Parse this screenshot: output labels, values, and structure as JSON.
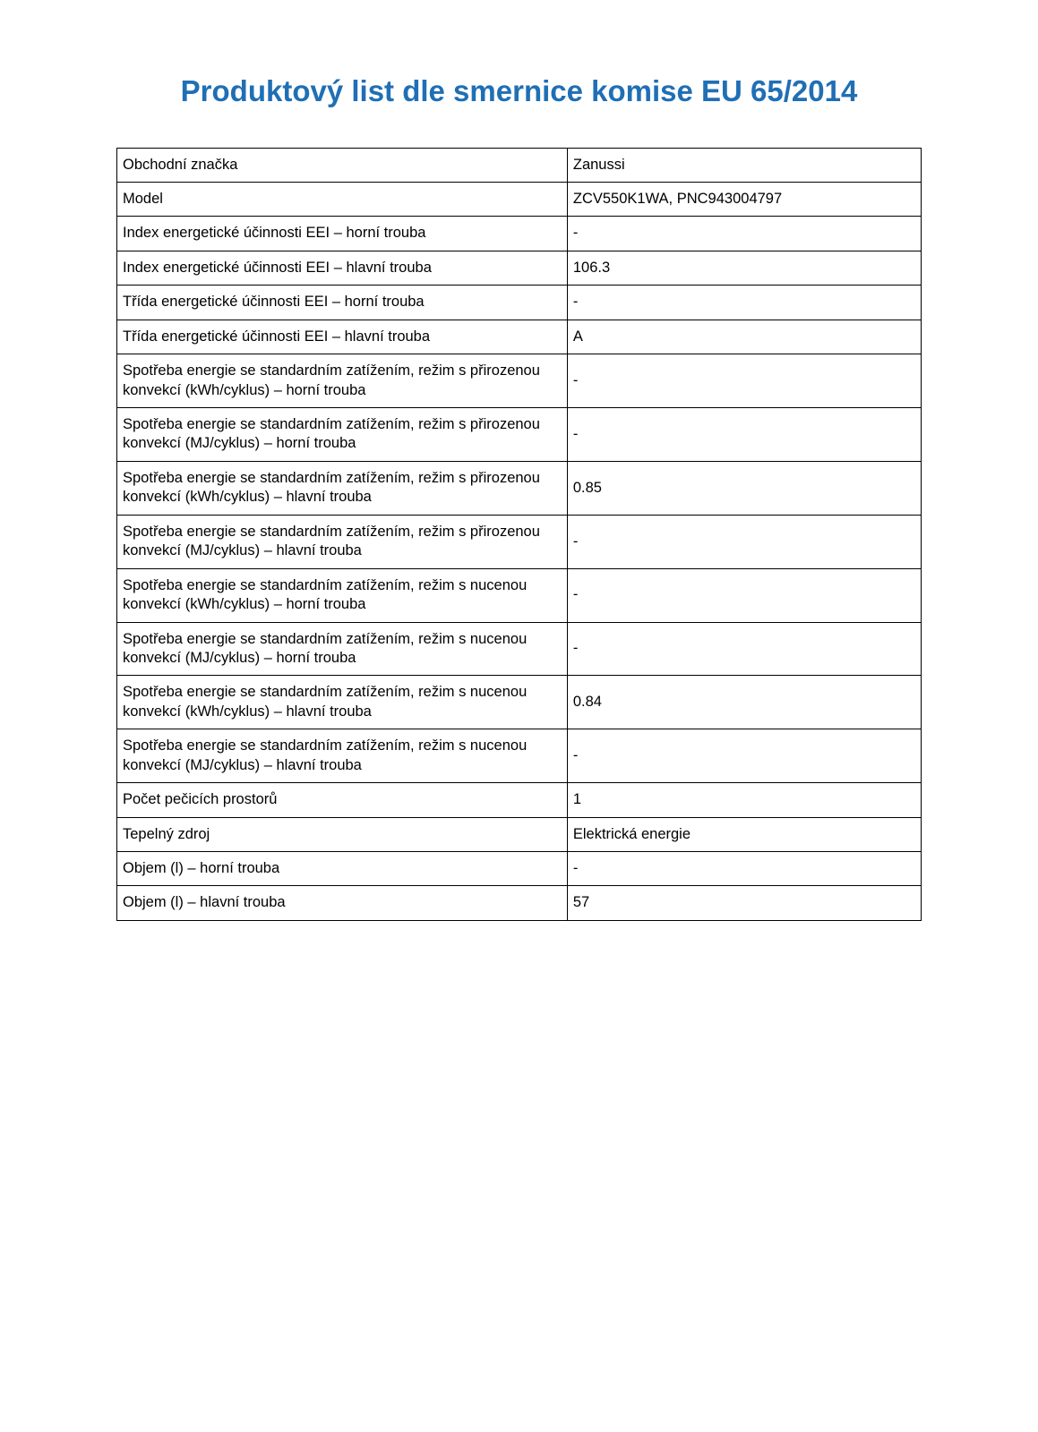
{
  "title": "Produktový list dle smernice komise EU 65/2014",
  "title_color": "#1f6fb5",
  "title_fontsize": 33,
  "body_fontsize": 16.5,
  "text_color": "#000000",
  "border_color": "#000000",
  "background_color": "#ffffff",
  "columns": [
    "label",
    "value"
  ],
  "column_widths": [
    "56%",
    "44%"
  ],
  "rows": [
    {
      "label": "Obchodní značka",
      "value": "Zanussi"
    },
    {
      "label": "Model",
      "value": "ZCV550K1WA, PNC943004797"
    },
    {
      "label": "Index energetické účinnosti EEI – horní trouba",
      "value": "-"
    },
    {
      "label": "Index energetické účinnosti EEI – hlavní trouba",
      "value": "106.3"
    },
    {
      "label": "Třída energetické účinnosti EEI – horní trouba",
      "value": "-"
    },
    {
      "label": "Třída energetické účinnosti EEI – hlavní trouba",
      "value": "A"
    },
    {
      "label": "Spotřeba energie se standardním zatížením, režim s přirozenou konvekcí (kWh/cyklus) – horní trouba",
      "value": "-"
    },
    {
      "label": "Spotřeba energie se standardním zatížením, režim s přirozenou konvekcí (MJ/cyklus) – horní trouba",
      "value": "-"
    },
    {
      "label": "Spotřeba energie se standardním zatížením, režim s přirozenou konvekcí (kWh/cyklus) – hlavní trouba",
      "value": "0.85"
    },
    {
      "label": "Spotřeba energie se standardním zatížením, režim s přirozenou konvekcí (MJ/cyklus) – hlavní trouba",
      "value": "-"
    },
    {
      "label": "Spotřeba energie se standardním zatížením, režim s nucenou konvekcí (kWh/cyklus) – horní trouba",
      "value": "-"
    },
    {
      "label": "Spotřeba energie se standardním zatížením, režim s nucenou konvekcí (MJ/cyklus) – horní trouba",
      "value": "-"
    },
    {
      "label": "Spotřeba energie se standardním zatížením, režim s nucenou konvekcí (kWh/cyklus) – hlavní trouba",
      "value": "0.84"
    },
    {
      "label": "Spotřeba energie se standardním zatížením, režim s nucenou konvekcí (MJ/cyklus) – hlavní trouba",
      "value": "-"
    },
    {
      "label": "Počet pečicích prostorů",
      "value": "1"
    },
    {
      "label": "Tepelný zdroj",
      "value": "Elektrická energie"
    },
    {
      "label": "Objem (l) – horní trouba",
      "value": "-"
    },
    {
      "label": "Objem (l) – hlavní trouba",
      "value": "57"
    }
  ]
}
